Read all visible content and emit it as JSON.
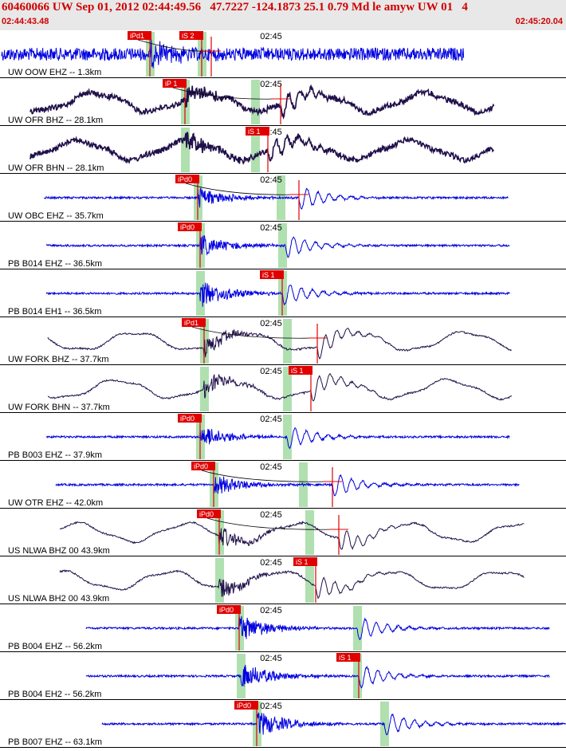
{
  "header": {
    "title": "60460066 UW Sep 01, 2012 02:44:49.56   47.7227 -124.1873 25.1 0.79 Md le amyw UW 01   4",
    "start_time": "02:44:43.48",
    "end_time": "02:45:20.04"
  },
  "colors": {
    "header_bg": "#e8e8e8",
    "header_text": "#d00000",
    "trace_blue": "#0000e0",
    "trace_dark": "#20104a",
    "pick_label_bg": "#e00000",
    "pick_line": "#e00000",
    "window_band": "#b0e0b0",
    "time_marker": "#000000"
  },
  "traces": [
    {
      "label": "UW OOW EHZ -- 1.3km",
      "time": "02:45",
      "picks": [
        {
          "text": "iPd1",
          "kind": "P"
        },
        {
          "text": "iS 2",
          "kind": "S"
        }
      ],
      "color": "blue",
      "style": "noisy"
    },
    {
      "label": "UW OFR BHZ -- 28.1km",
      "time": "02:45",
      "picks": [
        {
          "text": "iP 1",
          "kind": "P"
        }
      ],
      "color": "dark",
      "style": "wave"
    },
    {
      "label": "UW OFR BHN -- 28.1km",
      "time": "02:45",
      "picks": [
        {
          "text": "iS 1",
          "kind": "S"
        }
      ],
      "color": "dark",
      "style": "wave"
    },
    {
      "label": "UW OBC EHZ -- 35.7km",
      "time": "02:45",
      "picks": [
        {
          "text": "iPd0",
          "kind": "P"
        }
      ],
      "color": "blue",
      "style": "flat"
    },
    {
      "label": "PB B014 EHZ -- 36.5km",
      "time": "02:45",
      "picks": [
        {
          "text": "iPd0",
          "kind": "P"
        }
      ],
      "color": "blue",
      "style": "flat"
    },
    {
      "label": "PB B014 EH1 -- 36.5km",
      "time": "02:45",
      "picks": [
        {
          "text": "iS 1",
          "kind": "S"
        }
      ],
      "color": "blue",
      "style": "quake"
    },
    {
      "label": "UW FORK BHZ -- 37.7km",
      "time": "02:45",
      "picks": [
        {
          "text": "iPd1",
          "kind": "P"
        }
      ],
      "color": "dark",
      "style": "wave"
    },
    {
      "label": "UW FORK BHN -- 37.7km",
      "time": "02:45",
      "picks": [
        {
          "text": "iS 1",
          "kind": "S"
        }
      ],
      "color": "dark",
      "style": "wave"
    },
    {
      "label": "PB B003 EHZ -- 37.9km",
      "time": "02:45",
      "picks": [
        {
          "text": "iPd0",
          "kind": "P"
        }
      ],
      "color": "blue",
      "style": "flat"
    },
    {
      "label": "UW OTR EHZ -- 42.0km",
      "time": "02:45",
      "picks": [
        {
          "text": "iPd0",
          "kind": "P"
        }
      ],
      "color": "blue",
      "style": "flat"
    },
    {
      "label": "US NLWA BHZ 00 43.9km",
      "time": "02:45",
      "picks": [
        {
          "text": "iPd0",
          "kind": "P"
        }
      ],
      "color": "dark",
      "style": "wave"
    },
    {
      "label": "US NLWA BH2 00 43.9km",
      "time": "02:45",
      "picks": [
        {
          "text": "iS 1",
          "kind": "S"
        }
      ],
      "color": "dark",
      "style": "wave"
    },
    {
      "label": "PB B004 EHZ -- 56.2km",
      "time": "02:45",
      "picks": [
        {
          "text": "iPd0",
          "kind": "P"
        }
      ],
      "color": "blue",
      "style": "quake"
    },
    {
      "label": "PB B004 EH2 -- 56.2km",
      "time": "02:45",
      "picks": [
        {
          "text": "iS 1",
          "kind": "S"
        }
      ],
      "color": "blue",
      "style": "quake"
    },
    {
      "label": "PB B007 EHZ -- 63.1km",
      "time": "02:45",
      "picks": [
        {
          "text": "iPd0",
          "kind": "P"
        }
      ],
      "color": "blue",
      "style": "quake"
    }
  ]
}
